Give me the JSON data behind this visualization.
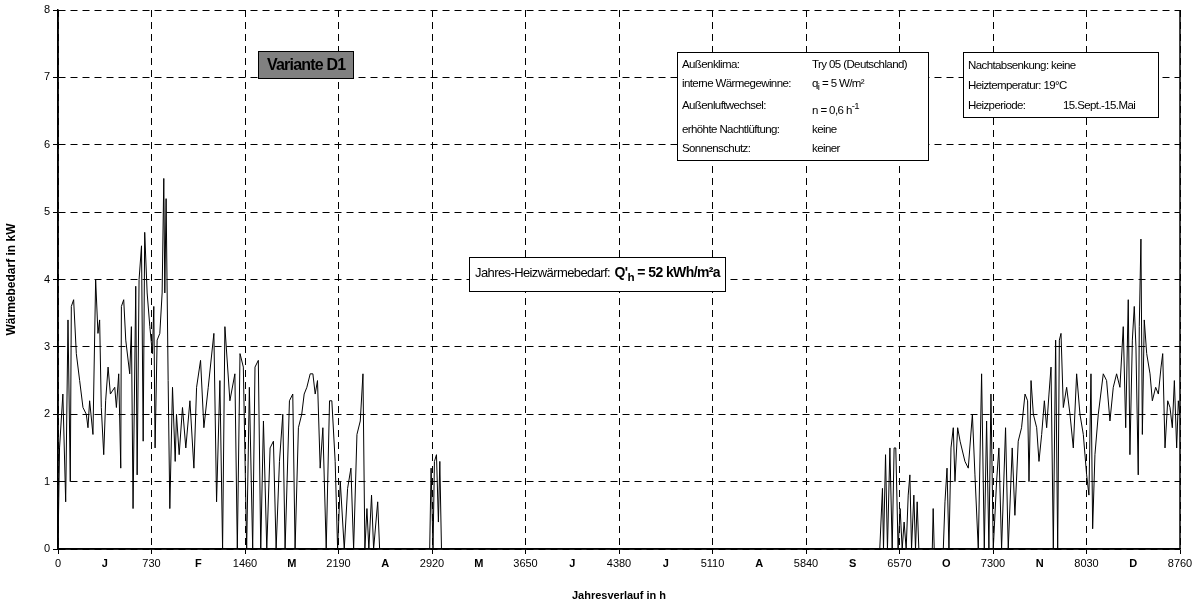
{
  "chart_data": {
    "type": "line",
    "xlabel": "Jahresverlauf in h",
    "ylabel": "Wärmebedarf in kW",
    "xlim": [
      0,
      8760
    ],
    "ylim": [
      0,
      8
    ],
    "xticks": [
      0,
      {
        "value": 365,
        "label": "J"
      },
      730,
      {
        "value": 1095,
        "label": "F"
      },
      1460,
      {
        "value": 1825,
        "label": "M"
      },
      2190,
      {
        "value": 2555,
        "label": "A"
      },
      2920,
      {
        "value": 3285,
        "label": "M"
      },
      3650,
      {
        "value": 4015,
        "label": "J"
      },
      4380,
      {
        "value": 4745,
        "label": "J"
      },
      5110,
      {
        "value": 5475,
        "label": "A"
      },
      5840,
      {
        "value": 6205,
        "label": "S"
      },
      6570,
      {
        "value": 6935,
        "label": "O"
      },
      7300,
      {
        "value": 7665,
        "label": "N"
      },
      8030,
      {
        "value": 8395,
        "label": "D"
      },
      8760
    ],
    "yticks": [
      0,
      1,
      2,
      3,
      4,
      5,
      6,
      7,
      8
    ],
    "grid": true,
    "marker": "none",
    "legend": false,
    "annotations": [
      "Variante D1",
      "Außenklima:",
      "Try 05 (Deutschland)",
      "interne Wärmegewinne:",
      "q$_{i}$ = 5 W/m²",
      "Außenluftwechsel:",
      "n = 0,6 h$^{-1}$",
      "erhöhte Nachtlüftung:",
      "keine",
      "Sonnenschutz:",
      "keiner",
      "Nachtabsenkung: keine",
      "Heiztemperatur: 19°C",
      "Heizperiode:",
      "15.Sept.-15.Mai",
      "Jahres-Heizwärmebedarf:",
      "Q'$_{h}$ = 52 kWh/m²a"
    ],
    "series": [
      {
        "color": "#000000",
        "x": [
          0,
          12,
          38,
          60,
          78,
          96,
          104,
          122,
          143,
          169,
          195,
          221,
          234,
          247,
          273,
          294,
          312,
          325,
          338,
          357,
          372,
          391,
          409,
          443,
          456,
          474,
          490,
          495,
          513,
          529,
          560,
          573,
          586,
          607,
          618,
          633,
          652,
          665,
          677,
          696,
          717,
          737,
          748,
          758,
          774,
          795,
          813,
          826,
          834,
          844,
          860,
          873,
          894,
          915,
          925,
          946,
          972,
          998,
          1030,
          1061,
          1082,
          1113,
          1139,
          1173,
          1217,
          1238,
          1264,
          1285,
          1303,
          1342,
          1381,
          1400,
          1421,
          1447,
          1473,
          1494,
          1520,
          1538,
          1564,
          1583,
          1604,
          1630,
          1656,
          1682,
          1703,
          1729,
          1755,
          1773,
          1807,
          1833,
          1851,
          1877,
          1903,
          1922,
          1943,
          1969,
          1990,
          2008,
          2026,
          2047,
          2068,
          2094,
          2120,
          2138,
          2164,
          2183,
          2204,
          2235,
          2261,
          2287,
          2308,
          2334,
          2360,
          2381,
          2396,
          2412,
          2427,
          2448,
          2464,
          2496,
          2511,
          2902,
          2913,
          2928,
          2939,
          2955,
          2970,
          2981,
          2994,
          6416,
          6437,
          6445,
          6461,
          6476,
          6495,
          6513,
          6528,
          6541,
          6559,
          6575,
          6591,
          6606,
          6622,
          6638,
          6651,
          6664,
          6682,
          6695,
          6708,
          6721,
          6826,
          6833,
          6841,
          6912,
          6925,
          6941,
          6956,
          6972,
          6990,
          7003,
          7024,
          7043,
          7081,
          7107,
          7139,
          7159,
          7185,
          7211,
          7232,
          7250,
          7268,
          7284,
          7302,
          7328,
          7346,
          7367,
          7398,
          7419,
          7450,
          7471,
          7497,
          7523,
          7550,
          7570,
          7581,
          7597,
          7615,
          7641,
          7659,
          7680,
          7701,
          7719,
          7737,
          7753,
          7771,
          7789,
          7805,
          7818,
          7831,
          7849,
          7875,
          7901,
          7927,
          7953,
          7979,
          8005,
          8031,
          8049,
          8065,
          8078,
          8096,
          8122,
          8161,
          8187,
          8213,
          8239,
          8265,
          8291,
          8317,
          8336,
          8356,
          8369,
          8388,
          8403,
          8416,
          8434,
          8442,
          8455,
          8466,
          8481,
          8500,
          8526,
          8544,
          8570,
          8591,
          8612,
          8625,
          8643,
          8664,
          8682,
          8700,
          8716,
          8734,
          8747,
          8758
        ],
        "values": [
          0,
          1.5,
          2.3,
          0.7,
          3.4,
          1.0,
          3.6,
          3.7,
          2.9,
          2.5,
          2.1,
          2.0,
          1.8,
          2.2,
          1.7,
          4.0,
          3.2,
          3.4,
          2.1,
          1.4,
          2.2,
          2.7,
          2.3,
          2.4,
          2.1,
          2.6,
          1.2,
          3.6,
          3.7,
          3.1,
          2.6,
          3.3,
          0.6,
          3.9,
          1.1,
          4.0,
          4.5,
          1.6,
          4.7,
          3.8,
          3.3,
          2.9,
          3.6,
          1.5,
          3.1,
          3.2,
          3.8,
          5.5,
          3.8,
          5.2,
          2.5,
          0.6,
          2.4,
          1.3,
          2.0,
          1.4,
          2.1,
          1.5,
          2.2,
          1.2,
          2.4,
          2.8,
          1.8,
          2.4,
          3.2,
          0.7,
          2.5,
          0,
          3.3,
          2.2,
          2.6,
          0,
          2.9,
          2.7,
          0,
          2.4,
          0,
          2.7,
          2.8,
          0,
          1.9,
          0,
          1.5,
          1.6,
          0,
          1.3,
          2.0,
          0,
          2.2,
          2.3,
          0,
          1.8,
          2.0,
          2.3,
          2.4,
          2.6,
          2.6,
          2.3,
          2.5,
          1.2,
          1.8,
          0,
          2.2,
          2.2,
          1.3,
          0,
          1.0,
          0,
          0.9,
          1.2,
          0,
          1.7,
          1.9,
          2.6,
          0,
          0.6,
          0,
          0.8,
          0,
          0.7,
          0,
          0,
          1.2,
          0,
          1.3,
          1.4,
          0.4,
          1.3,
          0,
          0,
          0.9,
          0,
          1.4,
          0,
          1.5,
          0,
          1.5,
          1.5,
          0,
          0.6,
          0,
          0.4,
          0,
          0.8,
          1.1,
          0,
          0.8,
          0,
          0.7,
          0,
          0,
          0.6,
          0,
          0,
          0.7,
          1.2,
          0,
          1.5,
          1.8,
          1.0,
          1.8,
          1.6,
          1.3,
          1.2,
          2.0,
          1.1,
          0,
          2.6,
          0,
          1.9,
          0,
          2.3,
          0,
          1.0,
          1.5,
          0,
          1.8,
          0,
          1.5,
          0.5,
          1.6,
          1.8,
          2.3,
          2.2,
          1.0,
          2.5,
          2.0,
          1.8,
          1.3,
          1.7,
          2.2,
          1.8,
          2.3,
          2.7,
          0,
          3.1,
          0,
          3.1,
          3.2,
          2.1,
          2.4,
          2.0,
          1.5,
          2.6,
          2.0,
          1.7,
          1.1,
          0.8,
          2.6,
          0.3,
          1.4,
          2.0,
          2.6,
          2.5,
          1.9,
          2.4,
          2.6,
          2.4,
          3.3,
          1.8,
          3.7,
          1.4,
          3.1,
          3.6,
          3.0,
          1.1,
          3.3,
          4.6,
          1.7,
          3.4,
          2.9,
          2.6,
          2.2,
          2.4,
          2.3,
          2.7,
          2.9,
          1.5,
          2.2,
          2.1,
          1.8,
          2.5,
          1.5,
          2.2,
          2.0
        ]
      }
    ]
  }
}
